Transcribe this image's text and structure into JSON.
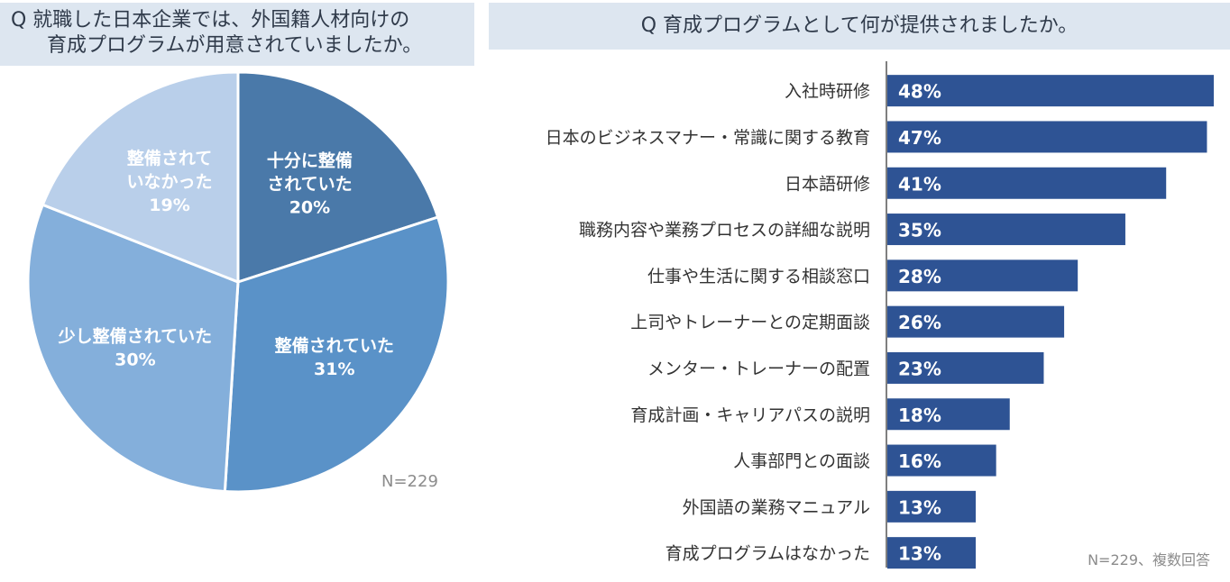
{
  "left_panel": {
    "question_line1": "Q  就職した日本企業では、外国籍人材向けの",
    "question_line2": "育成プログラムが用意されていましたか。",
    "note": "N=229"
  },
  "right_panel": {
    "question": "Q  育成プログラムとして何が提供されましたか。",
    "note": "N=229、複数回答"
  },
  "chart_data": [
    {
      "type": "pie",
      "title": "就職した日本企業では、外国籍人材向けの育成プログラムが用意されていましたか。",
      "slices": [
        {
          "label": [
            "十分に整備",
            "されていた"
          ],
          "value": 20,
          "value_text": "20%",
          "color": "#4a79a9"
        },
        {
          "label": [
            "整備されていた"
          ],
          "value": 31,
          "value_text": "31%",
          "color": "#5a92c8"
        },
        {
          "label": [
            "少し整備されていた"
          ],
          "value": 30,
          "value_text": "30%",
          "color": "#84afdb"
        },
        {
          "label": [
            "整備されて",
            "いなかった"
          ],
          "value": 19,
          "value_text": "19%",
          "color": "#b9cfea"
        }
      ]
    },
    {
      "type": "bar",
      "orientation": "horizontal",
      "title": "育成プログラムとして何が提供されましたか。",
      "bar_color": "#2e5394",
      "categories": [
        "入社時研修",
        "日本のビジネスマナー・常識に関する教育",
        "日本語研修",
        "職務内容や業務プロセスの詳細な説明",
        "仕事や生活に関する相談窓口",
        "上司やトレーナーとの定期面談",
        "メンター・トレーナーの配置",
        "育成計画・キャリアパスの説明",
        "人事部門との面談",
        "外国語の業務マニュアル",
        "育成プログラムはなかった"
      ],
      "values": [
        48,
        47,
        41,
        35,
        28,
        26,
        23,
        18,
        16,
        13,
        13
      ],
      "value_labels": [
        "48%",
        "47%",
        "41%",
        "35%",
        "28%",
        "26%",
        "23%",
        "18%",
        "16%",
        "13%",
        "13%"
      ],
      "unit": "%"
    }
  ]
}
